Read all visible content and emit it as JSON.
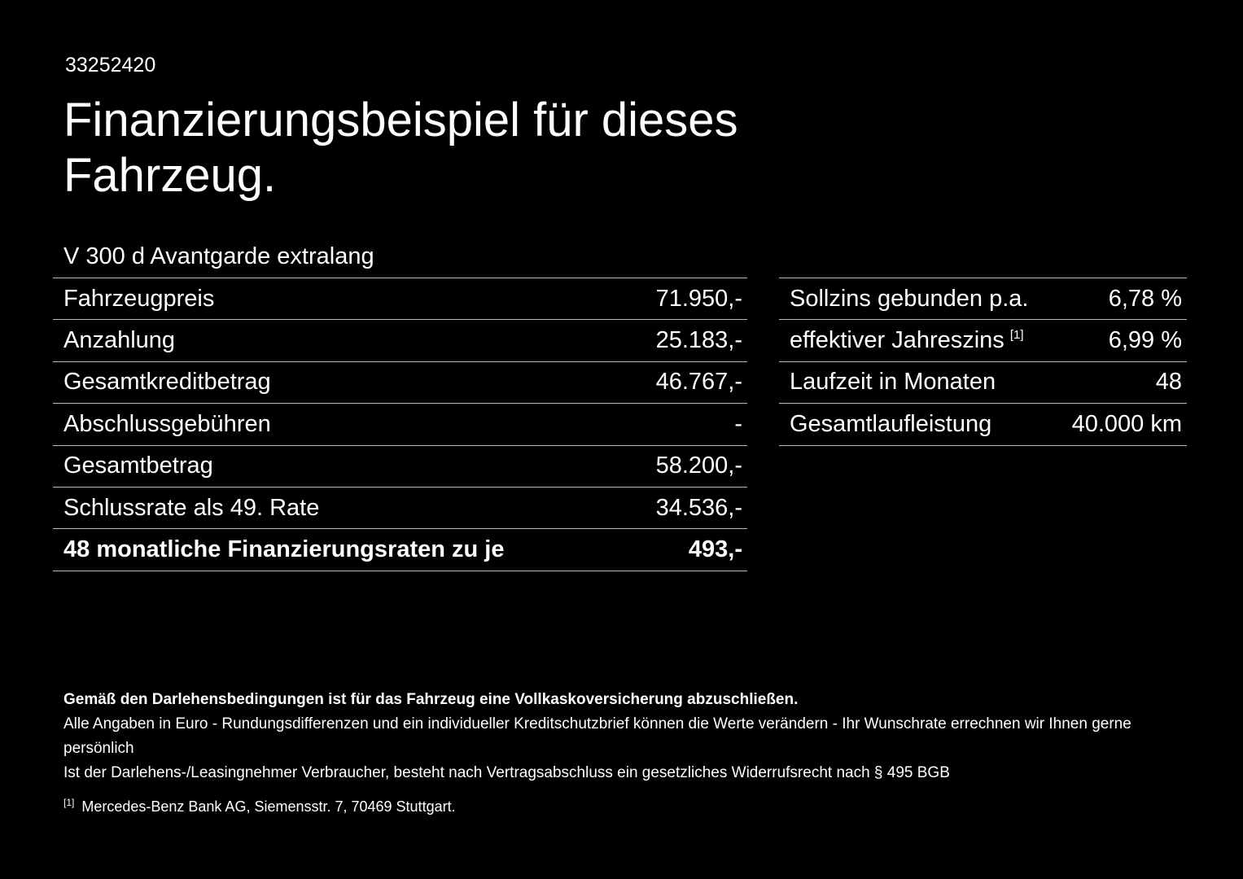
{
  "page": {
    "id_number": "33252420",
    "title": "Finanzierungsbeispiel für dieses Fahrzeug.",
    "model": "V 300 d Avantgarde extralang"
  },
  "left_table": {
    "rows": [
      {
        "label": "Fahrzeugpreis",
        "value": "71.950,-"
      },
      {
        "label": "Anzahlung",
        "value": "25.183,-"
      },
      {
        "label": "Gesamtkreditbetrag",
        "value": "46.767,-"
      },
      {
        "label": "Abschlussgebühren",
        "value": "-"
      },
      {
        "label": "Gesamtbetrag",
        "value": "58.200,-"
      },
      {
        "label": "Schlussrate als 49. Rate",
        "value": "34.536,-"
      },
      {
        "label": "48 monatliche Finanzierungsraten zu je",
        "value": "493,-"
      }
    ]
  },
  "right_table": {
    "rows": [
      {
        "label": "Sollzins gebunden p.a.",
        "value": "6,78 %"
      },
      {
        "label": "effektiver Jahreszins",
        "superscript": "[1]",
        "value": "6,99 %"
      },
      {
        "label": "Laufzeit in Monaten",
        "value": "48"
      },
      {
        "label": "Gesamtlaufleistung",
        "value": "40.000 km"
      }
    ]
  },
  "footer": {
    "line1": "Gemäß den Darlehensbedingungen ist für das Fahrzeug eine Vollkaskoversicherung abzuschließen.",
    "line2": "Alle Angaben in Euro - Rundungsdifferenzen und ein individueller Kreditschutzbrief können die Werte verändern - Ihr Wunschrate errechnen wir Ihnen gerne persönlich",
    "line3": "Ist der Darlehens-/Leasingnehmer Verbraucher, besteht nach Vertragsabschluss ein gesetzliches Widerrufsrecht nach § 495 BGB",
    "footnote_marker": "[1]",
    "footnote_text": "Mercedes-Benz Bank AG, Siemensstr. 7, 70469 Stuttgart."
  },
  "colors": {
    "background": "#000000",
    "text": "#ffffff",
    "divider": "#b9b9b9"
  }
}
